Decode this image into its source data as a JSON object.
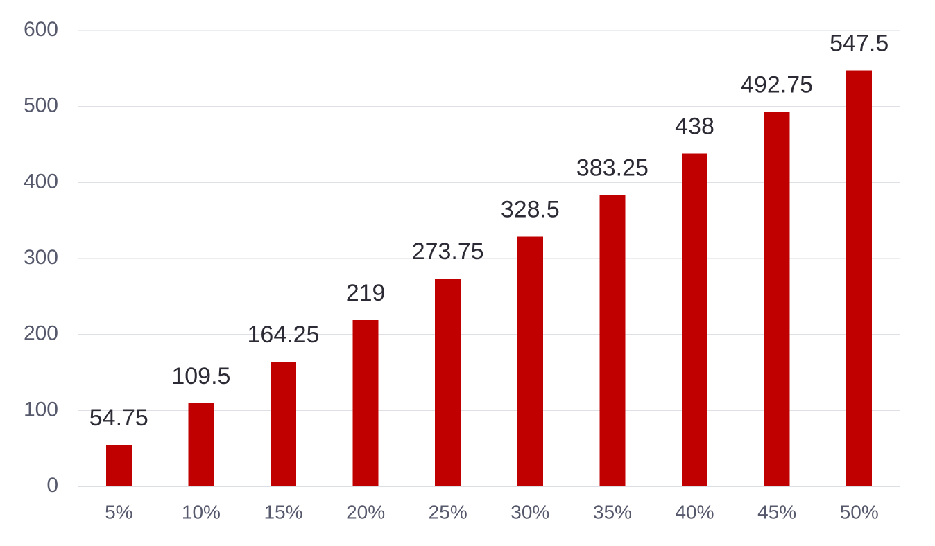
{
  "colors": {
    "bar": "#c00000",
    "grid": "#d9dbe3",
    "text": "#56596c",
    "label": "#2c2b35"
  },
  "chart_data": {
    "type": "bar",
    "categories": [
      "5%",
      "10%",
      "15%",
      "20%",
      "25%",
      "30%",
      "35%",
      "40%",
      "45%",
      "50%"
    ],
    "values": [
      54.75,
      109.5,
      164.25,
      219,
      273.75,
      328.5,
      383.25,
      438,
      492.75,
      547.5
    ],
    "data_labels": [
      "54.75",
      "109.5",
      "164.25",
      "219",
      "273.75",
      "328.5",
      "383.25",
      "438",
      "492.75",
      "547.5"
    ],
    "yticks": [
      "0",
      "100",
      "200",
      "300",
      "400",
      "500",
      "600"
    ],
    "ylim": [
      0,
      600
    ],
    "grid": true,
    "legend": "none",
    "title": "",
    "xlabel": "",
    "ylabel": ""
  }
}
